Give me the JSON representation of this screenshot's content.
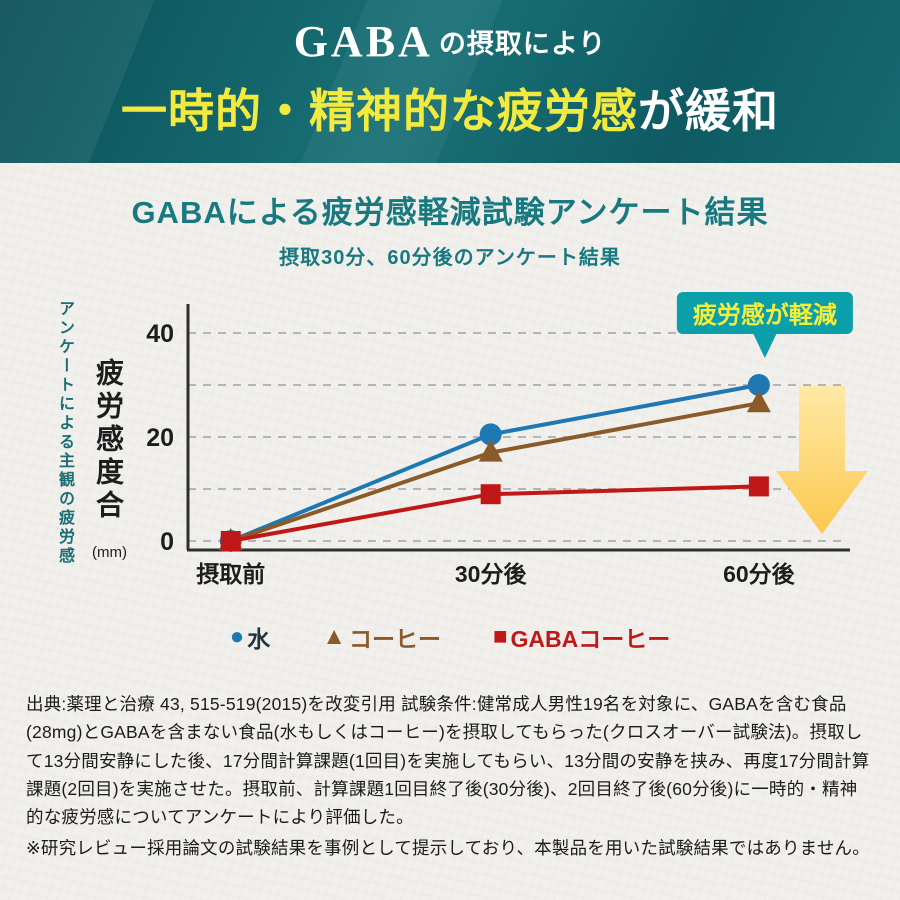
{
  "banner": {
    "line1_brand": "GABA",
    "line1_rest": "の摂取により",
    "line2_highlight": "一時的・精神的な疲労感",
    "line2_rest": "が緩和"
  },
  "heading": {
    "title": "GABAによる疲労感軽減試験アンケート結果",
    "subtitle": "摂取30分、60分後のアンケート結果"
  },
  "chart_data": {
    "type": "line",
    "categories": [
      "摂取前",
      "30分後",
      "60分後"
    ],
    "series": [
      {
        "name": "水",
        "marker": "circle",
        "color": "#1e78b4",
        "label_color": "#23333d",
        "values": [
          0,
          20.5,
          30
        ]
      },
      {
        "name": "コーヒー",
        "marker": "triangle",
        "color": "#8a5a28",
        "label_color": "#8a5a28",
        "values": [
          0,
          17,
          26.5
        ]
      },
      {
        "name": "GABAコーヒー",
        "marker": "square",
        "color": "#c01818",
        "label_color": "#c01818",
        "values": [
          0,
          9,
          10.5
        ]
      }
    ],
    "ylabel_outer": "アンケートによる主観の疲労感",
    "ylabel_inner": "疲労感度合",
    "ylabel_unit": "(mm)",
    "yticks": [
      0,
      20,
      40
    ],
    "gridlines": [
      0,
      10,
      20,
      30,
      40
    ],
    "ylim": [
      0,
      45
    ],
    "grid": "dashed",
    "legend_position": "bottom",
    "callout": "疲労感が軽減",
    "callout_bg": "#0ba0a9",
    "callout_text_color": "#f4ee3a",
    "arrow_color_top": "#ffe9a6",
    "arrow_color_bottom": "#fbc84e"
  },
  "footnote": {
    "body": "出典:薬理と治療 43, 515-519(2015)を改変引用 試験条件:健常成人男性19名を対象に、GABAを含む食品(28mg)とGABAを含まない食品(水もしくはコーヒー)を摂取してもらった(クロスオーバー試験法)。摂取して13分間安静にした後、17分間計算課題(1回目)を実施してもらい、13分間の安静を挟み、再度17分間計算課題(2回目)を実施させた。摂取前、計算課題1回目終了後(30分後)、2回目終了後(60分後)に一時的・精神的な疲労感についてアンケートにより評価した。",
    "note": "※研究レビュー採用論文の試験結果を事例として提示しており、本製品を用いた試験結果ではありません。"
  },
  "colors": {
    "banner_bg": "#13656d",
    "banner_highlight": "#f2ea3f",
    "heading_teal": "#187a80",
    "grid": "#b5b5b5",
    "axis": "#2e2e2e"
  }
}
